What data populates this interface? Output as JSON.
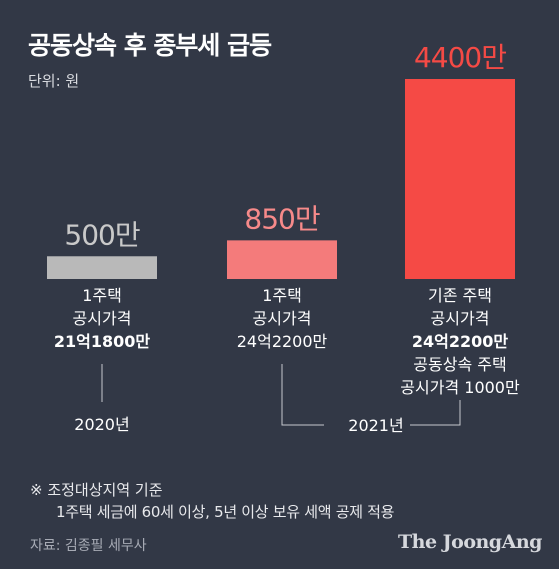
{
  "header": {
    "title": "공동상속 후 종부세 급등",
    "unit": "단위: 원"
  },
  "chart_data": {
    "type": "bar",
    "title": "공동상속 후 종부세 급등",
    "unit": "단위: 원",
    "ylim": [
      0,
      4400
    ],
    "categories": [
      {
        "lines": [
          {
            "text": "1주택",
            "bold": false
          },
          {
            "text": "공시가격",
            "bold": false
          },
          {
            "text": "21억1800만",
            "bold": true
          }
        ]
      },
      {
        "lines": [
          {
            "text": "1주택",
            "bold": false
          },
          {
            "text": "공시가격",
            "bold": false
          },
          {
            "text": "24억2200만",
            "bold": false
          }
        ]
      },
      {
        "lines": [
          {
            "text": "기존 주택",
            "bold": false
          },
          {
            "text": "공시가격",
            "bold": false
          },
          {
            "text": "24억2200만",
            "bold": true
          },
          {
            "text": "공동상속 주택",
            "bold": false
          },
          {
            "text": "공시가격 1000만",
            "bold": false
          }
        ]
      }
    ],
    "values": [
      500,
      850,
      4400
    ],
    "value_labels": [
      "500만",
      "850만",
      "4400만"
    ],
    "colors": [
      "#b9b9b9",
      "#f47b7b",
      "#f54a45"
    ],
    "label_colors": [
      "#c9c9c9",
      "#f78a8a",
      "#f54a45"
    ],
    "year_groups": [
      {
        "label": "2020년",
        "bars": [
          0
        ]
      },
      {
        "label": "2021년",
        "bars": [
          1,
          2
        ]
      }
    ]
  },
  "notes": {
    "title": "※ 조정대상지역 기준",
    "body": "1주택 세금에 60세 이상, 5년 이상 보유 세액 공제 적용"
  },
  "footer": {
    "source": "자료: 김종필 세무사",
    "logo": "The JoongAng"
  }
}
